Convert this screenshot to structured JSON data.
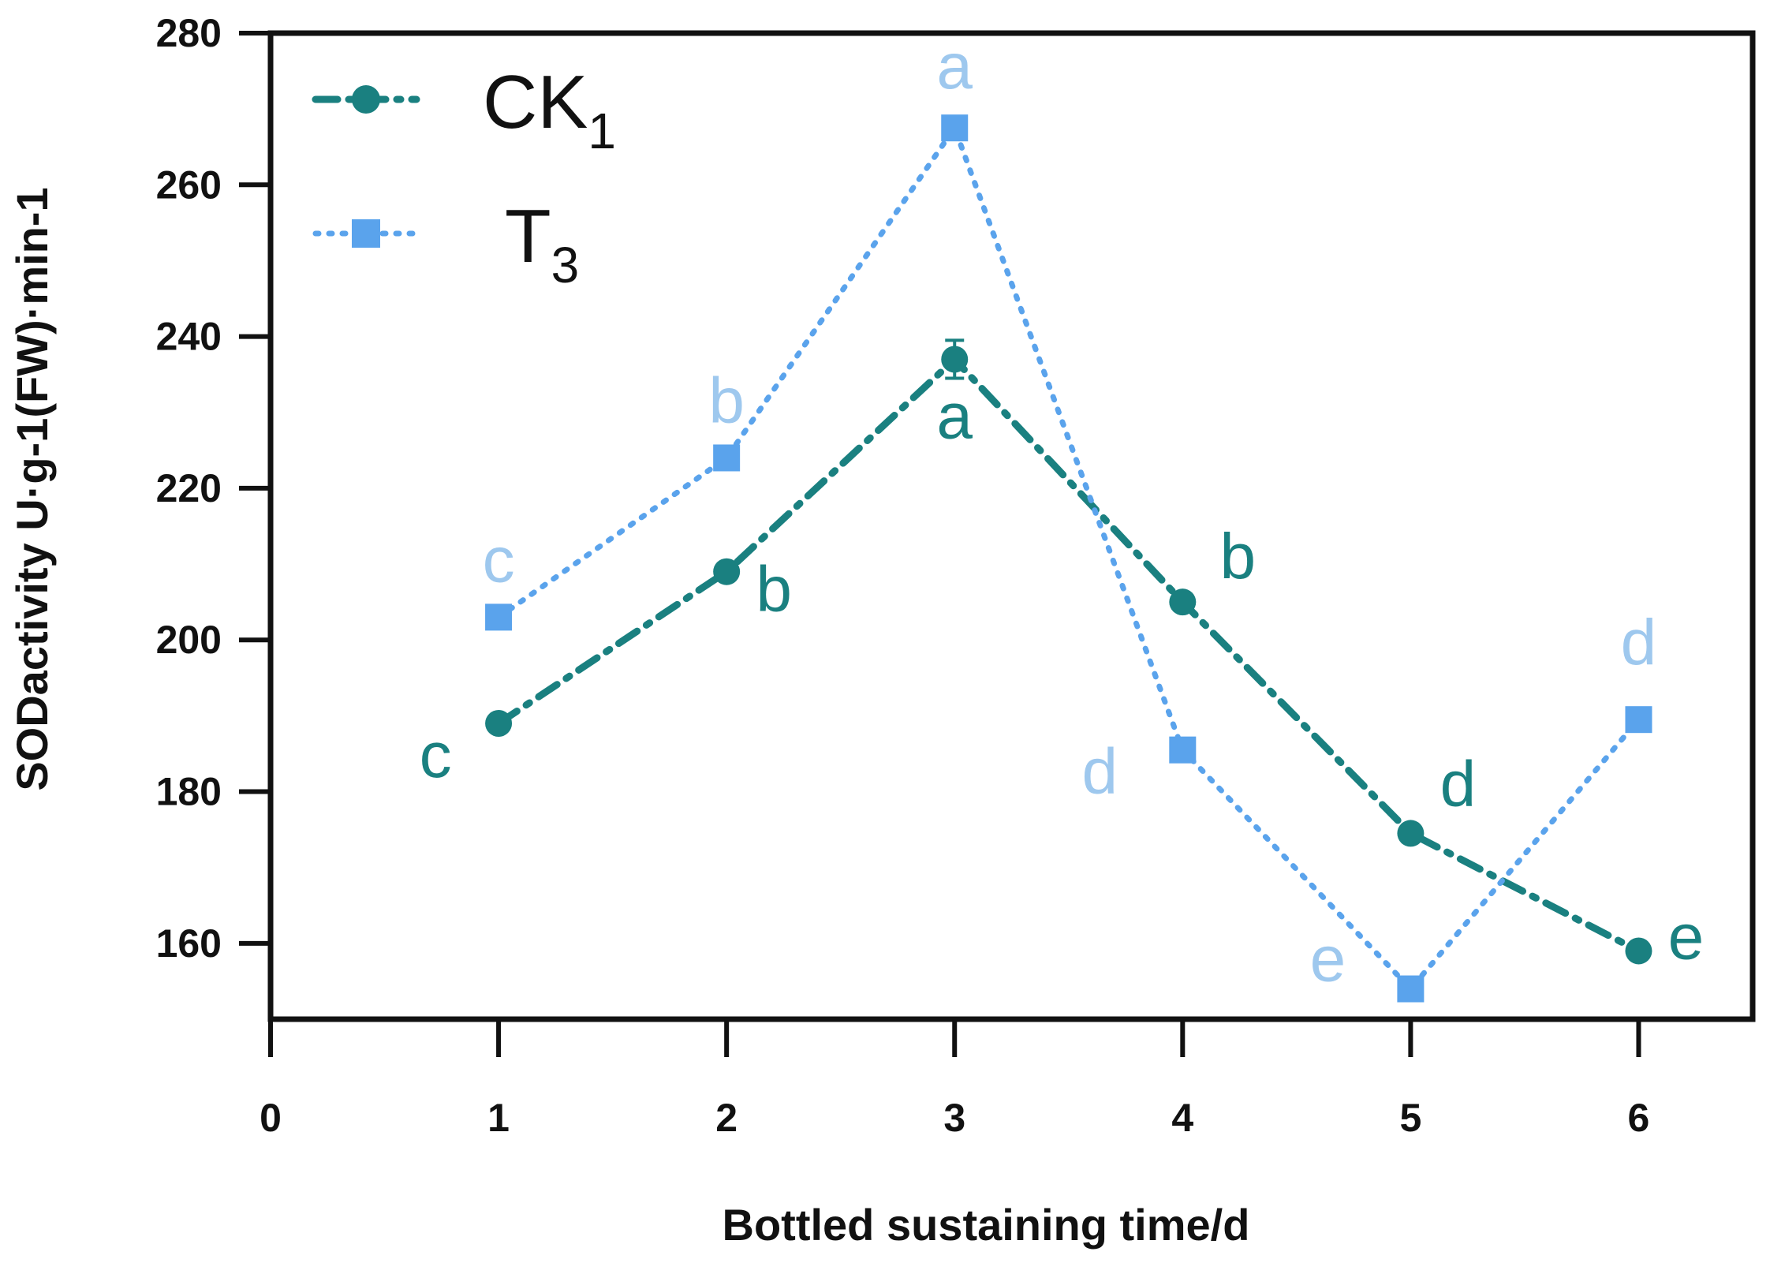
{
  "chart_data": {
    "type": "line",
    "x": [
      1,
      2,
      3,
      4,
      5,
      6
    ],
    "xlim": [
      0,
      6.5
    ],
    "ylim": [
      150,
      280
    ],
    "xticks": [
      0,
      1,
      2,
      3,
      4,
      5,
      6
    ],
    "yticks": [
      160,
      180,
      200,
      220,
      240,
      260,
      280
    ],
    "xlabel": "Bottled sustaining time/d",
    "ylabel": "SODactivity U·g-1(FW)·min-1",
    "legend_position": "top-left",
    "series": [
      {
        "id": "ck1",
        "name": "CK",
        "name_sub": "1",
        "color": "#1a8080",
        "marker": "circle",
        "line_style": "dash-dot",
        "values": [
          189,
          209,
          237,
          205,
          174.5,
          159
        ],
        "error": [
          0,
          0,
          2.5,
          0,
          0,
          0
        ],
        "letters": [
          "c",
          "b",
          "a",
          "b",
          "d",
          "e"
        ]
      },
      {
        "id": "t3",
        "name": "T",
        "name_sub": "3",
        "color": "#5aa3ec",
        "letter_color": "#9ec8ee",
        "marker": "square",
        "line_style": "dotted",
        "values": [
          203,
          224,
          267.5,
          185.5,
          154,
          189.5
        ],
        "error": [
          0,
          0,
          0,
          0,
          0,
          0
        ],
        "letters": [
          "c",
          "b",
          "a",
          "d",
          "e",
          "d"
        ]
      }
    ]
  }
}
